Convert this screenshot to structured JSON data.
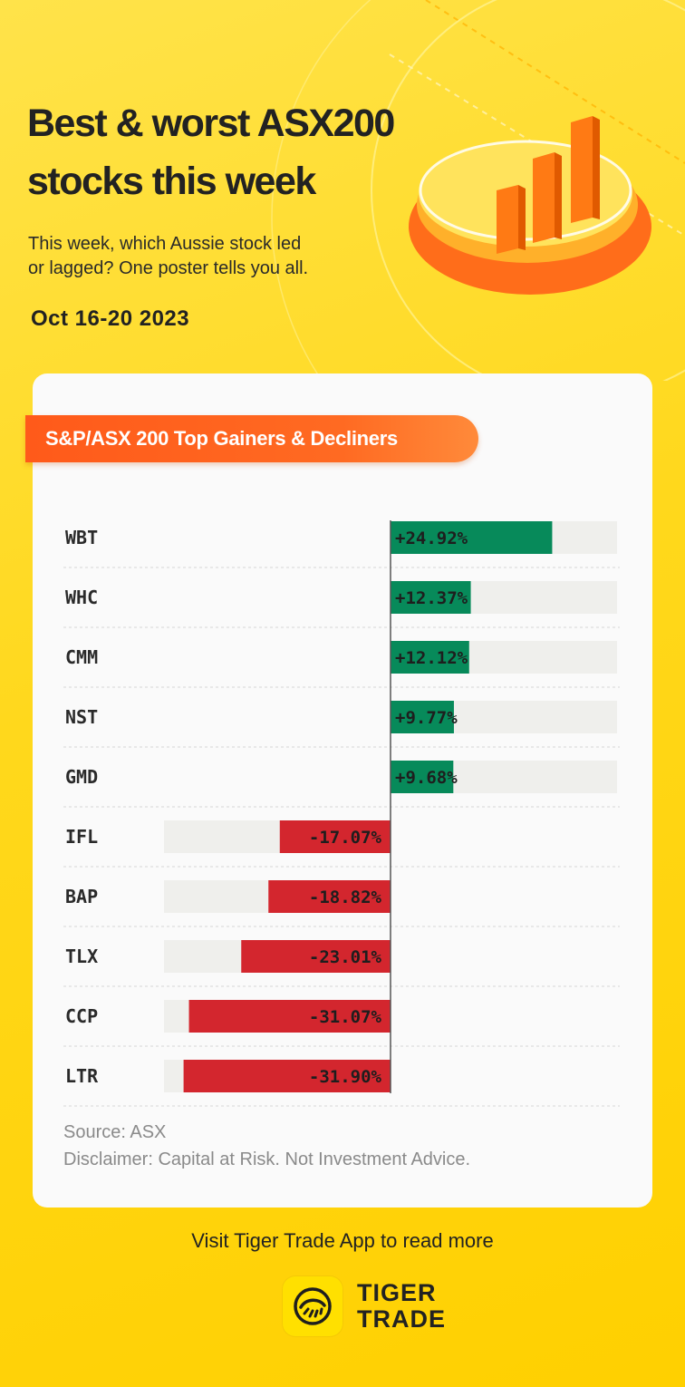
{
  "header": {
    "title_line1": "Best & worst ASX200",
    "title_line2": "stocks this week",
    "subtitle_line1": "This week, which Aussie stock led",
    "subtitle_line2": "or lagged? One poster tells you all.",
    "date": "Oct 16-20 2023"
  },
  "card": {
    "pill_label": "S&P/ASX 200 Top Gainers & Decliners",
    "source": "Source: ASX",
    "disclaimer": "Disclaimer: Capital at Risk. Not Investment Advice."
  },
  "footer": {
    "visit_text": "Visit Tiger Trade App to read more",
    "brand_line1": "TIGER",
    "brand_line2": "TRADE"
  },
  "colors": {
    "gain": "#078a5a",
    "loss": "#d3262e",
    "track": "#efefec",
    "accent": "#ff6a22"
  },
  "chart_data": {
    "type": "bar",
    "orientation": "horizontal",
    "categories": [
      "WBT",
      "WHC",
      "CMM",
      "NST",
      "GMD",
      "IFL",
      "BAP",
      "TLX",
      "CCP",
      "LTR"
    ],
    "values": [
      24.92,
      12.37,
      12.12,
      9.77,
      9.68,
      -17.07,
      -18.82,
      -23.01,
      -31.07,
      -31.9
    ],
    "labels": [
      "+24.92%",
      "+12.37%",
      "+12.12%",
      "+9.77%",
      "+9.68%",
      "-17.07%",
      "-18.82%",
      "-23.01%",
      "-31.07%",
      "-31.90%"
    ],
    "unit": "%",
    "xlim": [
      -34.5,
      34.5
    ],
    "grid": false,
    "legend": "none"
  }
}
